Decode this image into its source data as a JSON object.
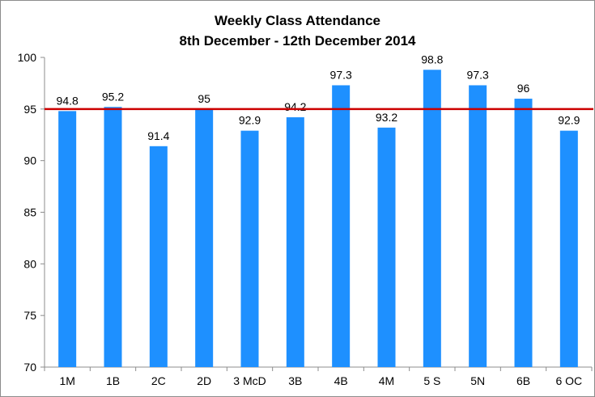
{
  "chart_data": {
    "type": "bar",
    "title": "Weekly Class Attendance",
    "subtitle": "8th December - 12th December 2014",
    "xlabel": "",
    "ylabel": "",
    "categories": [
      "1M",
      "1B",
      "2C",
      "2D",
      "3 McD",
      "3B",
      "4B",
      "4M",
      "5 S",
      "5N",
      "6B",
      "6 OC"
    ],
    "values": [
      94.8,
      95.2,
      91.4,
      95,
      92.9,
      94.2,
      97.3,
      93.2,
      98.8,
      97.3,
      96,
      92.9
    ],
    "data_labels": [
      "94.8",
      "95.2",
      "91.4",
      "95",
      "92.9",
      "94.2",
      "97.3",
      "93.2",
      "98.8",
      "97.3",
      "96",
      "92.9"
    ],
    "ylim": [
      70,
      100
    ],
    "yticks": [
      70,
      75,
      80,
      85,
      90,
      95,
      100
    ],
    "ytick_labels": [
      "70",
      "75",
      "80",
      "85",
      "90",
      "95",
      "100"
    ],
    "reference_line": 95,
    "grid": false,
    "legend": "none",
    "colors": {
      "bar": "#1e90ff",
      "reference_line": "#cc0000",
      "axis": "#8c8c8c"
    }
  }
}
